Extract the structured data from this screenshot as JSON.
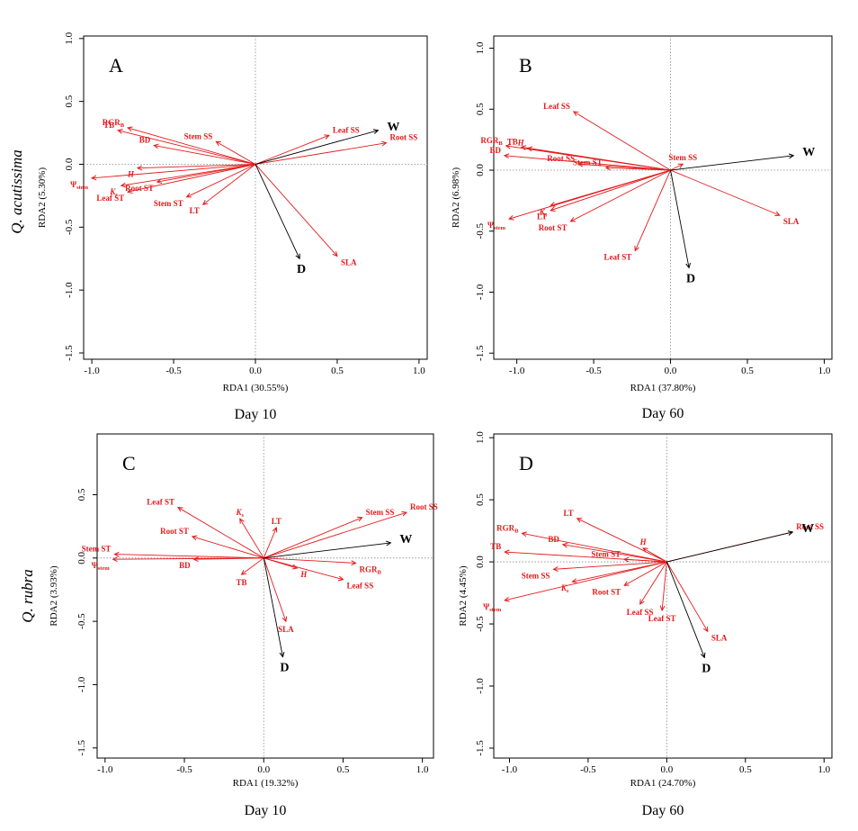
{
  "species_labels": [
    "Q. acutissima",
    "Q. rubra"
  ],
  "chart_data": [
    {
      "type": "scatter",
      "panel": "A",
      "day": "Day 10",
      "xlabel": "RDA1 (30.55%)",
      "ylabel": "RDA2 (5.30%)",
      "xlim": [
        -1.05,
        1.05
      ],
      "ylim": [
        -1.55,
        1.02
      ],
      "xticks": [
        -1.0,
        -0.5,
        0.0,
        0.5,
        1.0
      ],
      "yticks": [
        -1.5,
        -1.0,
        -0.5,
        0.0,
        0.5,
        1.0
      ],
      "arrows": [
        {
          "label": "RGRB",
          "x": -0.78,
          "y": 0.29,
          "color": "#e41a1c"
        },
        {
          "label": "TB",
          "x": -0.84,
          "y": 0.27,
          "color": "#e41a1c"
        },
        {
          "label": "BD",
          "x": -0.62,
          "y": 0.15,
          "color": "#e41a1c"
        },
        {
          "label": "Stem SS",
          "x": -0.24,
          "y": 0.18,
          "color": "#e41a1c"
        },
        {
          "label": "Leaf SS",
          "x": 0.45,
          "y": 0.23,
          "color": "#e41a1c"
        },
        {
          "label": "Root SS",
          "x": 0.8,
          "y": 0.17,
          "color": "#e41a1c"
        },
        {
          "label": "H",
          "x": -0.72,
          "y": -0.03,
          "color": "#e41a1c"
        },
        {
          "label": "Ψstem",
          "x": -1.0,
          "y": -0.11,
          "color": "#e41a1c"
        },
        {
          "label": "Ks",
          "x": -0.82,
          "y": -0.17,
          "color": "#e41a1c"
        },
        {
          "label": "Root ST",
          "x": -0.6,
          "y": -0.14,
          "color": "#e41a1c"
        },
        {
          "label": "Leaf ST",
          "x": -0.78,
          "y": -0.22,
          "color": "#e41a1c"
        },
        {
          "label": "Stem ST",
          "x": -0.42,
          "y": -0.26,
          "color": "#e41a1c"
        },
        {
          "label": "LT",
          "x": -0.32,
          "y": -0.32,
          "color": "#e41a1c"
        },
        {
          "label": "SLA",
          "x": 0.5,
          "y": -0.73,
          "color": "#e41a1c"
        },
        {
          "label": "W",
          "x": 0.75,
          "y": 0.27,
          "color": "#000000"
        },
        {
          "label": "D",
          "x": 0.27,
          "y": -0.75,
          "color": "#000000"
        }
      ]
    },
    {
      "type": "scatter",
      "panel": "B",
      "day": "Day 60",
      "xlabel": "RDA1 (37.80%)",
      "ylabel": "RDA2 (6.98%)",
      "xlim": [
        -1.15,
        1.05
      ],
      "ylim": [
        -1.55,
        1.1
      ],
      "xticks": [
        -1.0,
        -0.5,
        0.0,
        0.5,
        1.0
      ],
      "yticks": [
        -1.5,
        -1.0,
        -0.5,
        0.0,
        0.5,
        1.0
      ],
      "arrows": [
        {
          "label": "Leaf SS",
          "x": -0.63,
          "y": 0.48,
          "color": "#e41a1c"
        },
        {
          "label": "RGRB",
          "x": -1.07,
          "y": 0.2,
          "color": "#e41a1c"
        },
        {
          "label": "TB",
          "x": -0.97,
          "y": 0.19,
          "color": "#e41a1c"
        },
        {
          "label": "H",
          "x": -0.93,
          "y": 0.18,
          "color": "#e41a1c"
        },
        {
          "label": "BD",
          "x": -1.08,
          "y": 0.12,
          "color": "#e41a1c"
        },
        {
          "label": "Root SS",
          "x": -0.6,
          "y": 0.05,
          "color": "#e41a1c"
        },
        {
          "label": "Stem ST",
          "x": -0.42,
          "y": 0.02,
          "color": "#e41a1c"
        },
        {
          "label": "Stem SS",
          "x": 0.08,
          "y": 0.05,
          "color": "#e41a1c"
        },
        {
          "label": "Ks",
          "x": -0.78,
          "y": -0.29,
          "color": "#e41a1c"
        },
        {
          "label": "LT",
          "x": -0.78,
          "y": -0.33,
          "color": "#e41a1c"
        },
        {
          "label": "Ψstem",
          "x": -1.05,
          "y": -0.4,
          "color": "#e41a1c"
        },
        {
          "label": "Root ST",
          "x": -0.65,
          "y": -0.42,
          "color": "#e41a1c"
        },
        {
          "label": "Leaf ST",
          "x": -0.23,
          "y": -0.66,
          "color": "#e41a1c"
        },
        {
          "label": "SLA",
          "x": 0.71,
          "y": -0.37,
          "color": "#e41a1c"
        },
        {
          "label": "W",
          "x": 0.8,
          "y": 0.12,
          "color": "#000000"
        },
        {
          "label": "D",
          "x": 0.12,
          "y": -0.8,
          "color": "#000000"
        }
      ]
    },
    {
      "type": "scatter",
      "panel": "C",
      "day": "Day 10",
      "xlabel": "RDA1 (19.32%)",
      "ylabel": "RDA2 (3.93%)",
      "xlim": [
        -1.05,
        1.07
      ],
      "ylim": [
        -1.58,
        0.98
      ],
      "xticks": [
        -1.0,
        -0.5,
        0.0,
        0.5,
        1.0
      ],
      "yticks": [
        -1.5,
        -1.0,
        -0.5,
        0.0,
        0.5
      ],
      "arrows": [
        {
          "label": "Leaf ST",
          "x": -0.54,
          "y": 0.4,
          "color": "#e41a1c"
        },
        {
          "label": "Ks",
          "x": -0.15,
          "y": 0.31,
          "color": "#e41a1c"
        },
        {
          "label": "LT",
          "x": 0.08,
          "y": 0.24,
          "color": "#e41a1c"
        },
        {
          "label": "Stem SS",
          "x": 0.62,
          "y": 0.32,
          "color": "#e41a1c"
        },
        {
          "label": "Root SS",
          "x": 0.9,
          "y": 0.36,
          "color": "#e41a1c"
        },
        {
          "label": "Root ST",
          "x": -0.45,
          "y": 0.17,
          "color": "#e41a1c"
        },
        {
          "label": "Stem ST",
          "x": -0.94,
          "y": 0.03,
          "color": "#e41a1c"
        },
        {
          "label": "Ψstem",
          "x": -0.95,
          "y": -0.01,
          "color": "#e41a1c"
        },
        {
          "label": "BD",
          "x": -0.44,
          "y": -0.01,
          "color": "#e41a1c"
        },
        {
          "label": "TB",
          "x": -0.14,
          "y": -0.13,
          "color": "#e41a1c"
        },
        {
          "label": "H",
          "x": 0.21,
          "y": -0.08,
          "color": "#e41a1c"
        },
        {
          "label": "RGRB",
          "x": 0.58,
          "y": -0.04,
          "color": "#e41a1c"
        },
        {
          "label": "Leaf SS",
          "x": 0.5,
          "y": -0.17,
          "color": "#e41a1c"
        },
        {
          "label": "SLA",
          "x": 0.14,
          "y": -0.5,
          "color": "#e41a1c"
        },
        {
          "label": "W",
          "x": 0.8,
          "y": 0.12,
          "color": "#000000"
        },
        {
          "label": "D",
          "x": 0.12,
          "y": -0.78,
          "color": "#000000"
        }
      ]
    },
    {
      "type": "scatter",
      "panel": "D",
      "day": "Day 60",
      "xlabel": "RDA1 (24.70%)",
      "ylabel": "RDA2 (4.45%)",
      "xlim": [
        -1.1,
        1.05
      ],
      "ylim": [
        -1.58,
        1.03
      ],
      "xticks": [
        -1.0,
        -0.5,
        0.0,
        0.5,
        1.0
      ],
      "yticks": [
        -1.5,
        -1.0,
        -0.5,
        0.0,
        0.5,
        1.0
      ],
      "arrows": [
        {
          "label": "LT",
          "x": -0.57,
          "y": 0.35,
          "color": "#e41a1c"
        },
        {
          "label": "RGRB",
          "x": -0.92,
          "y": 0.23,
          "color": "#e41a1c"
        },
        {
          "label": "BD",
          "x": -0.66,
          "y": 0.14,
          "color": "#e41a1c"
        },
        {
          "label": "H",
          "x": -0.15,
          "y": 0.11,
          "color": "#e41a1c"
        },
        {
          "label": "TB",
          "x": -1.03,
          "y": 0.08,
          "color": "#e41a1c"
        },
        {
          "label": "Stem ST",
          "x": -0.27,
          "y": 0.02,
          "color": "#e41a1c"
        },
        {
          "label": "Stem SS",
          "x": -0.72,
          "y": -0.06,
          "color": "#e41a1c"
        },
        {
          "label": "Ks",
          "x": -0.6,
          "y": -0.16,
          "color": "#e41a1c"
        },
        {
          "label": "Root ST",
          "x": -0.27,
          "y": -0.19,
          "color": "#e41a1c"
        },
        {
          "label": "Ψstem",
          "x": -1.03,
          "y": -0.31,
          "color": "#e41a1c"
        },
        {
          "label": "Leaf SS",
          "x": -0.17,
          "y": -0.34,
          "color": "#e41a1c"
        },
        {
          "label": "Leaf ST",
          "x": -0.03,
          "y": -0.39,
          "color": "#e41a1c"
        },
        {
          "label": "SLA",
          "x": 0.26,
          "y": -0.56,
          "color": "#e41a1c"
        },
        {
          "label": "Root SS",
          "x": 0.8,
          "y": 0.24,
          "color": "#e41a1c"
        },
        {
          "label": "W",
          "x": 0.8,
          "y": 0.24,
          "color": "#000000"
        },
        {
          "label": "D",
          "x": 0.24,
          "y": -0.77,
          "color": "#000000"
        }
      ]
    }
  ]
}
